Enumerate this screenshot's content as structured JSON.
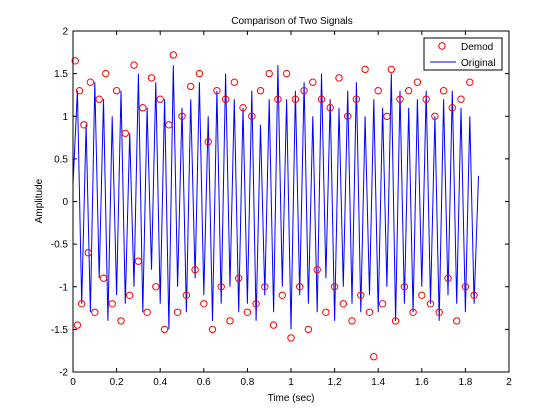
{
  "chart_data": {
    "type": "line",
    "title": "Comparison of Two Signals",
    "xlabel": "Time (sec)",
    "ylabel": "Amplitude",
    "xlim": [
      0,
      2
    ],
    "ylim": [
      -2,
      2
    ],
    "xticks": [
      0,
      0.2,
      0.4,
      0.6,
      0.8,
      1,
      1.2,
      1.4,
      1.6,
      1.8,
      2
    ],
    "xtick_labels": [
      "0",
      "0.2",
      "0.4",
      "0.6",
      "0.8",
      "1",
      "1.2",
      "1.4",
      "1.6",
      "1.8",
      "2"
    ],
    "yticks": [
      -2,
      -1.5,
      -1,
      -0.5,
      0,
      0.5,
      1,
      1.5,
      2
    ],
    "ytick_labels": [
      "-2",
      "-1.5",
      "-1",
      "-0.5",
      "0",
      "0.5",
      "1",
      "1.5",
      "2"
    ],
    "grid": false,
    "legend_position": "top-right",
    "series": [
      {
        "name": "Demod",
        "style": "markers",
        "marker": "circle-open",
        "color": "#ff0000",
        "x": [
          0.01,
          0.02,
          0.03,
          0.04,
          0.05,
          0.07,
          0.08,
          0.1,
          0.12,
          0.14,
          0.15,
          0.18,
          0.2,
          0.22,
          0.24,
          0.26,
          0.28,
          0.3,
          0.32,
          0.34,
          0.36,
          0.38,
          0.4,
          0.42,
          0.44,
          0.46,
          0.48,
          0.5,
          0.52,
          0.54,
          0.56,
          0.58,
          0.6,
          0.62,
          0.64,
          0.66,
          0.68,
          0.7,
          0.72,
          0.74,
          0.76,
          0.78,
          0.8,
          0.82,
          0.84,
          0.86,
          0.88,
          0.9,
          0.92,
          0.94,
          0.96,
          0.98,
          1.0,
          1.02,
          1.04,
          1.06,
          1.08,
          1.1,
          1.12,
          1.14,
          1.16,
          1.18,
          1.2,
          1.22,
          1.24,
          1.26,
          1.28,
          1.3,
          1.32,
          1.34,
          1.36,
          1.38,
          1.4,
          1.42,
          1.44,
          1.46,
          1.48,
          1.5,
          1.52,
          1.54,
          1.56,
          1.58,
          1.6,
          1.62,
          1.64,
          1.66,
          1.68,
          1.7,
          1.72,
          1.74,
          1.76,
          1.78,
          1.8,
          1.82,
          1.84
        ],
        "y": [
          1.65,
          -1.45,
          1.3,
          -1.2,
          0.9,
          -0.6,
          1.4,
          -1.3,
          1.2,
          -0.9,
          1.5,
          -1.2,
          1.3,
          -1.4,
          0.8,
          -1.1,
          1.6,
          -0.7,
          1.1,
          -1.3,
          1.45,
          -1.0,
          1.2,
          -1.5,
          0.9,
          1.72,
          -1.3,
          1.0,
          -1.1,
          1.35,
          -0.8,
          1.5,
          -1.2,
          0.7,
          -1.5,
          1.3,
          -1.0,
          1.2,
          -1.4,
          1.4,
          -0.9,
          1.1,
          -1.3,
          1.0,
          -1.2,
          1.3,
          -1.0,
          1.5,
          -1.45,
          1.2,
          -1.1,
          1.5,
          -1.6,
          1.2,
          -1.0,
          1.3,
          -1.5,
          1.4,
          -0.8,
          1.2,
          -1.3,
          1.1,
          -1.0,
          1.45,
          -1.2,
          1.0,
          -1.4,
          1.2,
          -1.1,
          1.55,
          -1.3,
          -1.82,
          1.3,
          -1.2,
          1.0,
          1.55,
          -1.4,
          1.2,
          -1.0,
          1.3,
          -1.3,
          1.4,
          -1.1,
          1.2,
          -1.2,
          1.0,
          -1.3,
          1.3,
          -0.9,
          1.1,
          -1.4,
          1.2,
          -1.0,
          1.4,
          -1.1
        ]
      },
      {
        "name": "Original",
        "style": "line",
        "color": "#0000ff",
        "x": [
          0.0,
          0.02,
          0.04,
          0.06,
          0.08,
          0.1,
          0.12,
          0.14,
          0.16,
          0.18,
          0.2,
          0.22,
          0.24,
          0.26,
          0.28,
          0.3,
          0.32,
          0.34,
          0.36,
          0.38,
          0.4,
          0.42,
          0.44,
          0.46,
          0.48,
          0.5,
          0.52,
          0.54,
          0.56,
          0.58,
          0.6,
          0.62,
          0.64,
          0.66,
          0.68,
          0.7,
          0.72,
          0.74,
          0.76,
          0.78,
          0.8,
          0.82,
          0.84,
          0.86,
          0.88,
          0.9,
          0.92,
          0.94,
          0.96,
          0.98,
          1.0,
          1.02,
          1.04,
          1.06,
          1.08,
          1.1,
          1.12,
          1.14,
          1.16,
          1.18,
          1.2,
          1.22,
          1.24,
          1.26,
          1.28,
          1.3,
          1.32,
          1.34,
          1.36,
          1.38,
          1.4,
          1.42,
          1.44,
          1.46,
          1.48,
          1.5,
          1.52,
          1.54,
          1.56,
          1.58,
          1.6,
          1.62,
          1.64,
          1.66,
          1.68,
          1.7,
          1.72,
          1.74,
          1.76,
          1.78,
          1.8,
          1.82,
          1.84,
          1.86
        ],
        "y": [
          0.2,
          1.3,
          -1.2,
          0.9,
          -1.3,
          1.4,
          -0.9,
          1.2,
          -1.4,
          1.0,
          -1.1,
          1.3,
          -1.2,
          0.8,
          -1.0,
          1.5,
          -1.3,
          1.1,
          -0.8,
          1.4,
          -1.2,
          1.2,
          -1.5,
          1.6,
          -1.0,
          1.1,
          -1.3,
          1.2,
          -0.9,
          1.4,
          -1.1,
          1.0,
          -1.4,
          1.3,
          -1.2,
          1.5,
          -1.0,
          1.2,
          -1.3,
          1.1,
          -1.2,
          1.3,
          -1.4,
          0.9,
          -1.1,
          1.2,
          -1.3,
          1.6,
          -1.0,
          1.2,
          -1.5,
          1.3,
          -1.1,
          1.4,
          -1.2,
          1.0,
          -1.3,
          1.5,
          -0.9,
          1.2,
          -1.4,
          1.1,
          -1.0,
          1.3,
          -1.2,
          1.4,
          -1.3,
          1.0,
          -1.1,
          1.2,
          -1.3,
          1.1,
          -1.0,
          1.5,
          -1.4,
          1.3,
          -1.2,
          1.1,
          -1.3,
          1.2,
          -1.0,
          1.3,
          -1.2,
          1.0,
          -1.4,
          1.2,
          -1.1,
          1.3,
          -1.2,
          1.1,
          -1.3,
          1.0,
          -1.2,
          0.3
        ]
      }
    ]
  }
}
